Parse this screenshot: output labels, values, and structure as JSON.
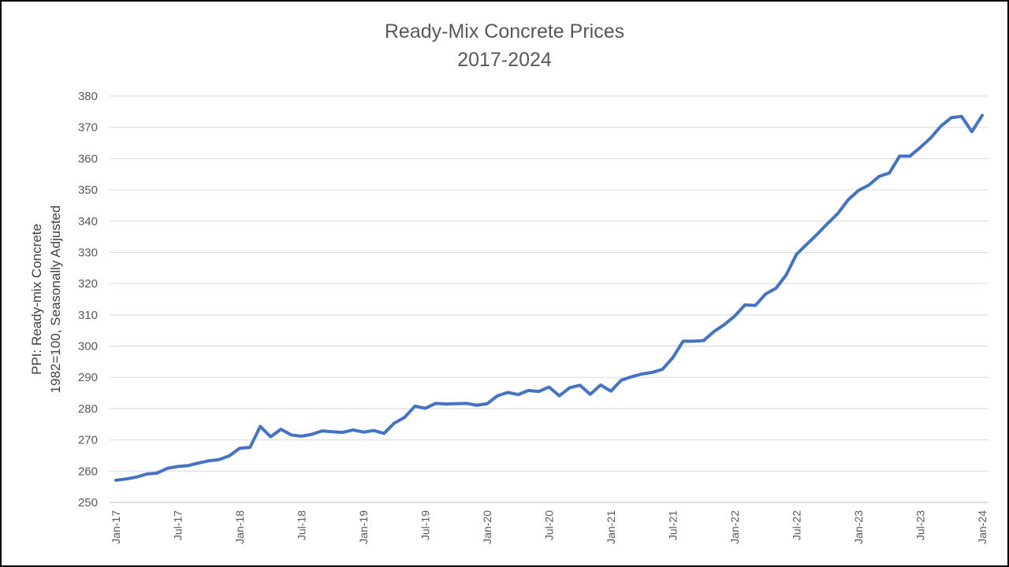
{
  "chart_data": {
    "type": "line",
    "title": [
      "Ready-Mix Concrete Prices",
      "2017-2024"
    ],
    "ylabel": [
      "PPI: Ready-mix Concrete",
      "1982=100, Seasonally Adjusted"
    ],
    "xlabel": "",
    "ylim": [
      250,
      380
    ],
    "ytick_step": 10,
    "grid": true,
    "legend": "none",
    "x_ticks": [
      "Jan-17",
      "Jul-17",
      "Jan-18",
      "Jul-18",
      "Jan-19",
      "Jul-19",
      "Jan-20",
      "Jul-20",
      "Jan-21",
      "Jul-21",
      "Jan-22",
      "Jul-22",
      "Jan-23",
      "Jul-23",
      "Jan-24"
    ],
    "x_start": "Jan-17",
    "x_frequency": "monthly",
    "series": [
      {
        "color": "#4472c4",
        "values": [
          257.1,
          257.5,
          258.1,
          259.1,
          259.4,
          260.9,
          261.5,
          261.8,
          262.6,
          263.3,
          263.7,
          264.9,
          267.3,
          267.6,
          274.3,
          271.0,
          273.4,
          271.6,
          271.2,
          271.8,
          272.9,
          272.6,
          272.4,
          273.2,
          272.5,
          273.0,
          272.1,
          275.4,
          277.2,
          280.8,
          280.1,
          281.7,
          281.5,
          281.6,
          281.7,
          281.1,
          281.6,
          284.1,
          285.2,
          284.5,
          285.8,
          285.5,
          286.9,
          284.1,
          286.7,
          287.5,
          284.6,
          287.6,
          285.6,
          289.1,
          290.2,
          291.1,
          291.6,
          292.6,
          296.3,
          301.6,
          301.6,
          301.8,
          304.7,
          306.9,
          309.6,
          313.2,
          313.0,
          316.7,
          318.5,
          322.8,
          329.4,
          332.6,
          335.8,
          339.2,
          342.4,
          346.8,
          349.8,
          351.5,
          354.3,
          355.4,
          360.8,
          360.8,
          363.6,
          366.6,
          370.4,
          373.1,
          373.5,
          368.6,
          373.8
        ]
      }
    ]
  }
}
